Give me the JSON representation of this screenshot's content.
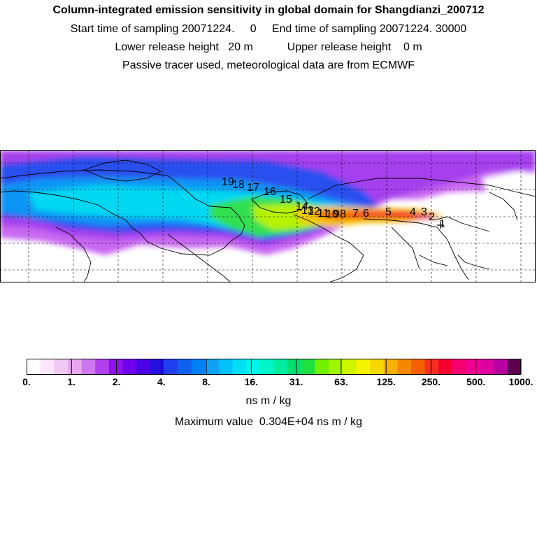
{
  "header": {
    "title": "Column-integrated emission sensitivity in global domain for Shangdianzi_200712",
    "line1": "Start time of sampling 20071224.     0     End time of sampling 20071224. 30000",
    "line2": "Lower release height   20 m           Upper release height    0 m",
    "line3": "Passive tracer used, meteorological data are from ECMWF"
  },
  "map": {
    "region": "global domain",
    "trajectory_labels": [
      "1",
      "2",
      "3",
      "4",
      "5",
      "6",
      "7",
      "8",
      "9",
      "10",
      "11",
      "12",
      "13",
      "14",
      "15",
      "16",
      "17",
      "18",
      "19"
    ]
  },
  "colorbar": {
    "tick_labels": [
      "0.",
      "1.",
      "2.",
      "4.",
      "8.",
      "16.",
      "31.",
      "63.",
      "125.",
      "250.",
      "500.",
      "1000."
    ],
    "colors": [
      "#ffffff",
      "#fbe6fb",
      "#f2c9f5",
      "#e8a8f0",
      "#cc77ee",
      "#b040ee",
      "#9010f0",
      "#6f00ee",
      "#4b00e8",
      "#2510e0",
      "#2040f0",
      "#1060f0",
      "#0080f5",
      "#10a0f5",
      "#00c2f8",
      "#00e0f5",
      "#00f5e8",
      "#00f5c8",
      "#00eca0",
      "#00e070",
      "#20e040",
      "#70ef00",
      "#a0f500",
      "#d0f500",
      "#f5f500",
      "#f5d800",
      "#f5b000",
      "#f58800",
      "#f56000",
      "#f53020",
      "#f50030",
      "#f50070",
      "#ee0090",
      "#dd00a0",
      "#b800a0",
      "#5e0050"
    ],
    "unit": "ns m / kg"
  },
  "max_value": "Maximum value  0.304E+04 ns m / kg"
}
